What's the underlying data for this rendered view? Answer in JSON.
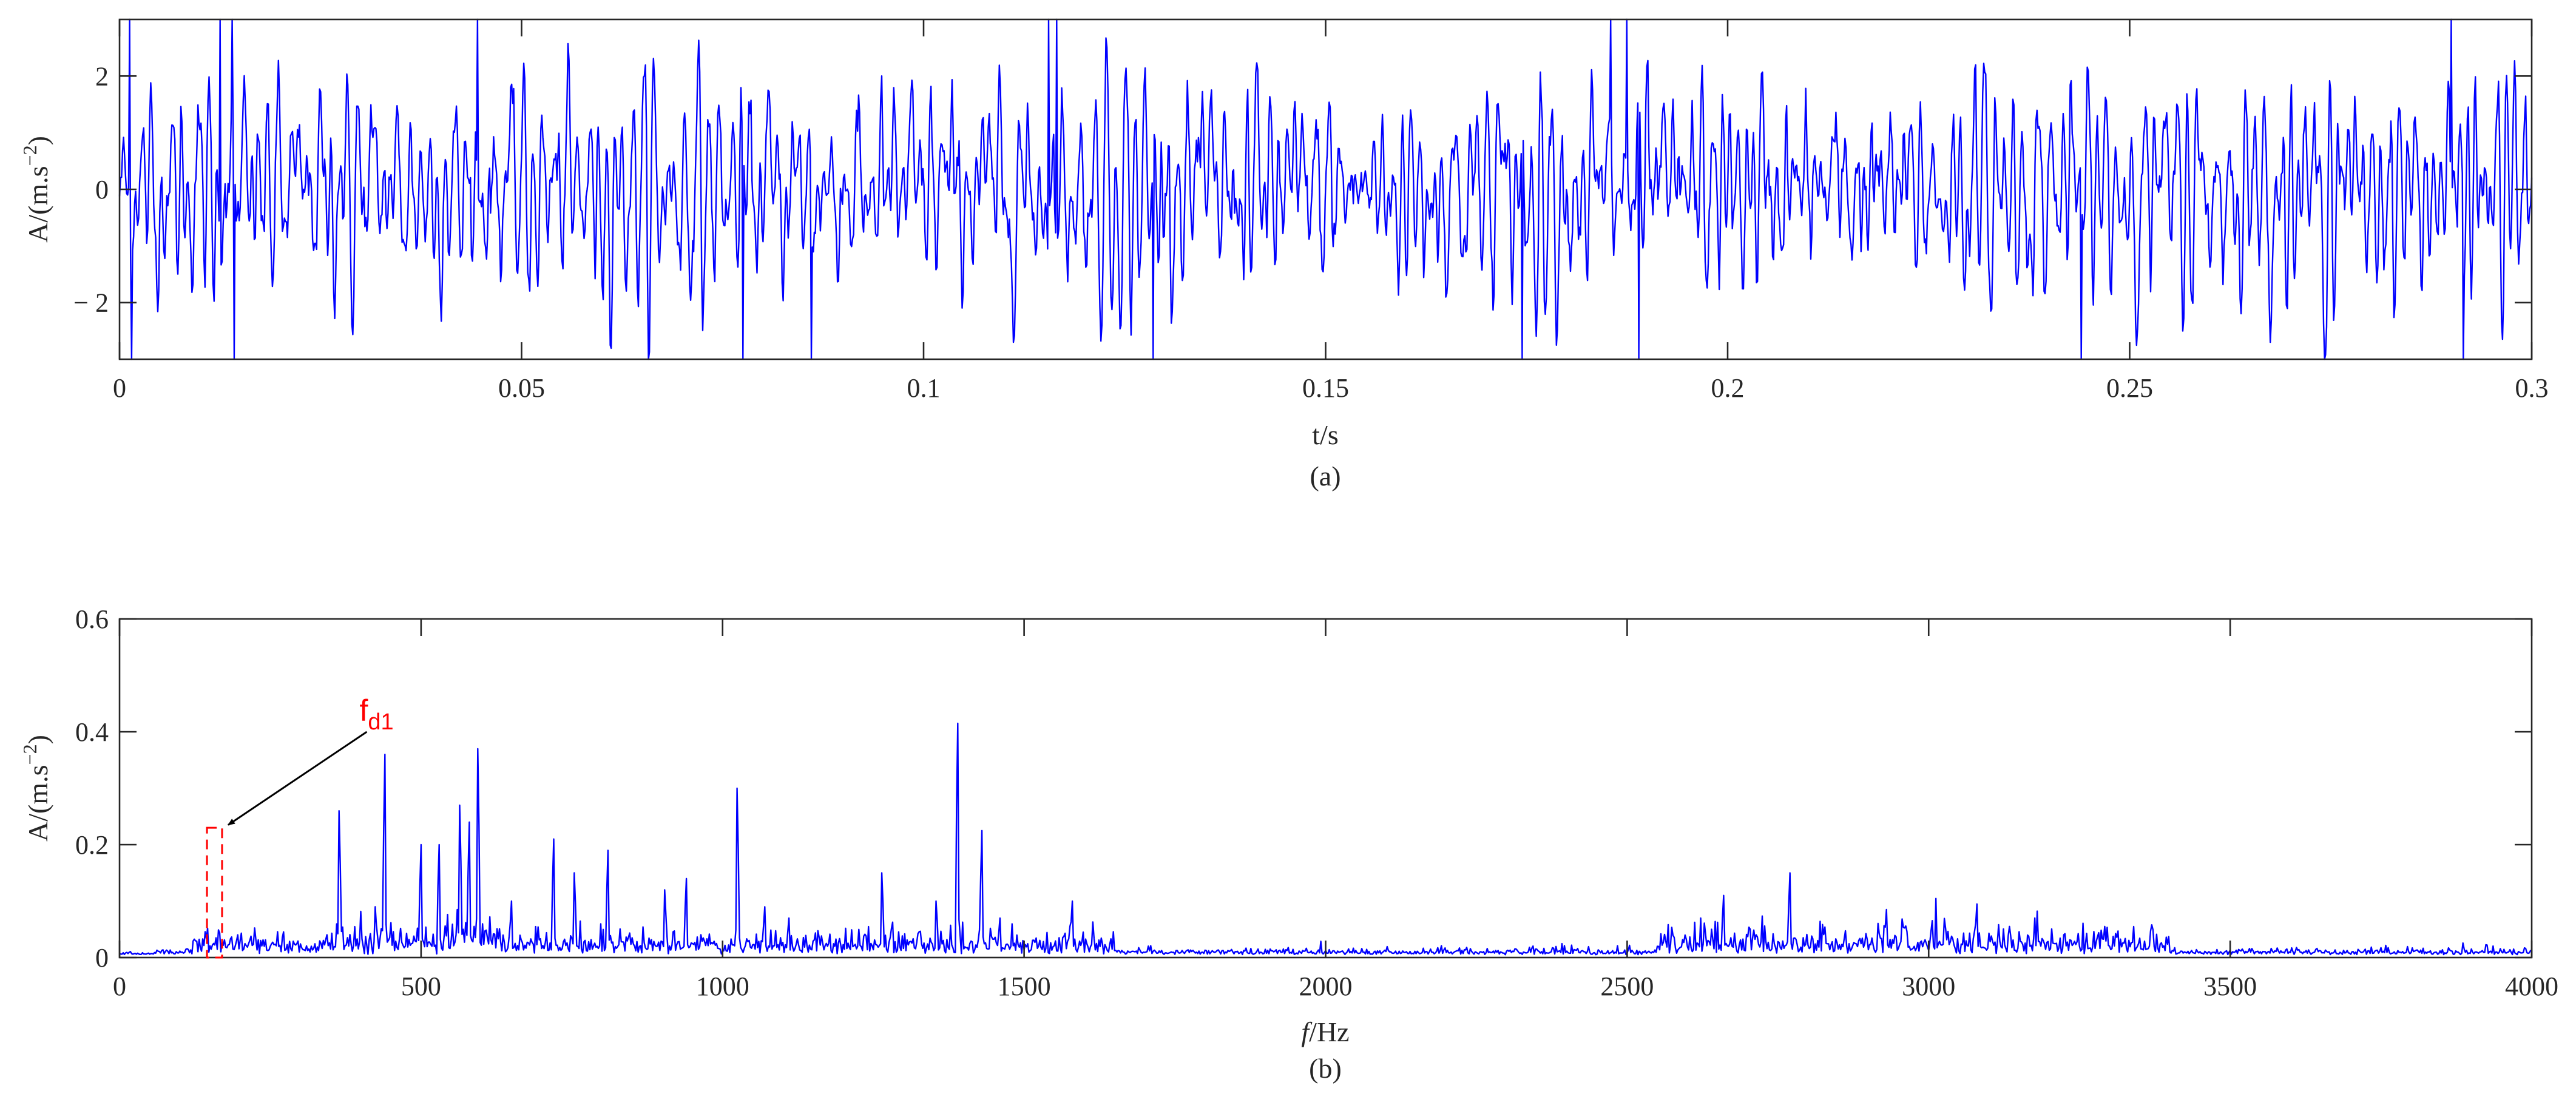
{
  "colors": {
    "series": "#0000ff",
    "axis": "#262626",
    "annotation": "#ff0000"
  },
  "chart_data": [
    {
      "type": "line",
      "panel": "a",
      "caption": "(a)",
      "xlabel": "t/s",
      "ylabel": "A/(m.s",
      "ylabel_sup": "−2",
      "ylabel_close": ")",
      "xlim": [
        0,
        0.3
      ],
      "ylim": [
        -3,
        3
      ],
      "xticks": [
        0,
        0.05,
        0.1,
        0.15,
        0.2,
        0.25,
        0.3
      ],
      "xtick_labels": [
        "0",
        "0.05",
        "0.1",
        "0.15",
        "0.2",
        "0.25",
        "0.3"
      ],
      "yticks": [
        -2,
        0,
        2
      ],
      "ytick_labels": [
        "− 2",
        "0",
        "2"
      ],
      "grid": false,
      "series": [
        {
          "color": "#0000ff",
          "style": "noisy vibration signal",
          "n_points": 2400,
          "t_range": [
            0,
            0.3
          ],
          "rms": 0.95,
          "peaks": [
            {
              "t": 0.0012,
              "y": 3.0
            },
            {
              "t": 0.0015,
              "y": -3.0
            },
            {
              "t": 0.0125,
              "y": 3.0
            },
            {
              "t": 0.014,
              "y": 3.0
            },
            {
              "t": 0.0142,
              "y": -3.0
            },
            {
              "t": 0.0445,
              "y": 3.0
            },
            {
              "t": 0.0775,
              "y": -3.0
            },
            {
              "t": 0.086,
              "y": -3.0
            },
            {
              "t": 0.1155,
              "y": 3.0
            },
            {
              "t": 0.1165,
              "y": 3.0
            },
            {
              "t": 0.1285,
              "y": -3.0
            },
            {
              "t": 0.1745,
              "y": -3.0
            },
            {
              "t": 0.1855,
              "y": 3.0
            },
            {
              "t": 0.1875,
              "y": 3.0
            },
            {
              "t": 0.189,
              "y": -3.0
            },
            {
              "t": 0.244,
              "y": -3.0
            },
            {
              "t": 0.29,
              "y": 3.0
            },
            {
              "t": 0.2915,
              "y": -3.0
            }
          ]
        }
      ]
    },
    {
      "type": "line",
      "panel": "b",
      "caption": "(b)",
      "xlabel_italic": "f",
      "xlabel_rest": "/Hz",
      "ylabel": "A/(m.s",
      "ylabel_sup": "−2",
      "ylabel_close": ")",
      "xlim": [
        0,
        4000
      ],
      "ylim": [
        0,
        0.6
      ],
      "xticks": [
        0,
        500,
        1000,
        1500,
        2000,
        2500,
        3000,
        3500,
        4000
      ],
      "xtick_labels": [
        "0",
        "500",
        "1000",
        "1500",
        "2000",
        "2500",
        "3000",
        "3500",
        "4000"
      ],
      "yticks": [
        0,
        0.2,
        0.4,
        0.6
      ],
      "ytick_labels": [
        "0",
        "0.2",
        "0.4",
        "0.6"
      ],
      "grid": false,
      "series": [
        {
          "color": "#0000ff",
          "style": "amplitude spectrum",
          "baseline": 0.005,
          "peaks": [
            {
              "f": 150,
              "a": 0.015
            },
            {
              "f": 160,
              "a": 0.035
            },
            {
              "f": 365,
              "a": 0.26
            },
            {
              "f": 425,
              "a": 0.09
            },
            {
              "f": 440,
              "a": 0.36
            },
            {
              "f": 500,
              "a": 0.2
            },
            {
              "f": 530,
              "a": 0.2
            },
            {
              "f": 565,
              "a": 0.27
            },
            {
              "f": 580,
              "a": 0.24
            },
            {
              "f": 595,
              "a": 0.37
            },
            {
              "f": 650,
              "a": 0.1
            },
            {
              "f": 720,
              "a": 0.21
            },
            {
              "f": 755,
              "a": 0.15
            },
            {
              "f": 810,
              "a": 0.19
            },
            {
              "f": 905,
              "a": 0.12
            },
            {
              "f": 940,
              "a": 0.14
            },
            {
              "f": 1025,
              "a": 0.3
            },
            {
              "f": 1070,
              "a": 0.09
            },
            {
              "f": 1110,
              "a": 0.07
            },
            {
              "f": 1265,
              "a": 0.15
            },
            {
              "f": 1355,
              "a": 0.1
            },
            {
              "f": 1390,
              "a": 0.415
            },
            {
              "f": 1430,
              "a": 0.225
            },
            {
              "f": 1460,
              "a": 0.07
            },
            {
              "f": 1580,
              "a": 0.1
            },
            {
              "f": 2660,
              "a": 0.11
            },
            {
              "f": 2770,
              "a": 0.15
            },
            {
              "f": 2930,
              "a": 0.085
            },
            {
              "f": 3080,
              "a": 0.095
            }
          ]
        }
      ],
      "annotation": {
        "label": "f",
        "label_sub": "d1",
        "color": "#ff0000",
        "box_f": [
          145,
          170
        ],
        "box_a": [
          0,
          0.23
        ],
        "arrow_from": {
          "f": 410,
          "a": 0.4
        },
        "arrow_to": {
          "f": 180,
          "a": 0.235
        }
      }
    }
  ]
}
